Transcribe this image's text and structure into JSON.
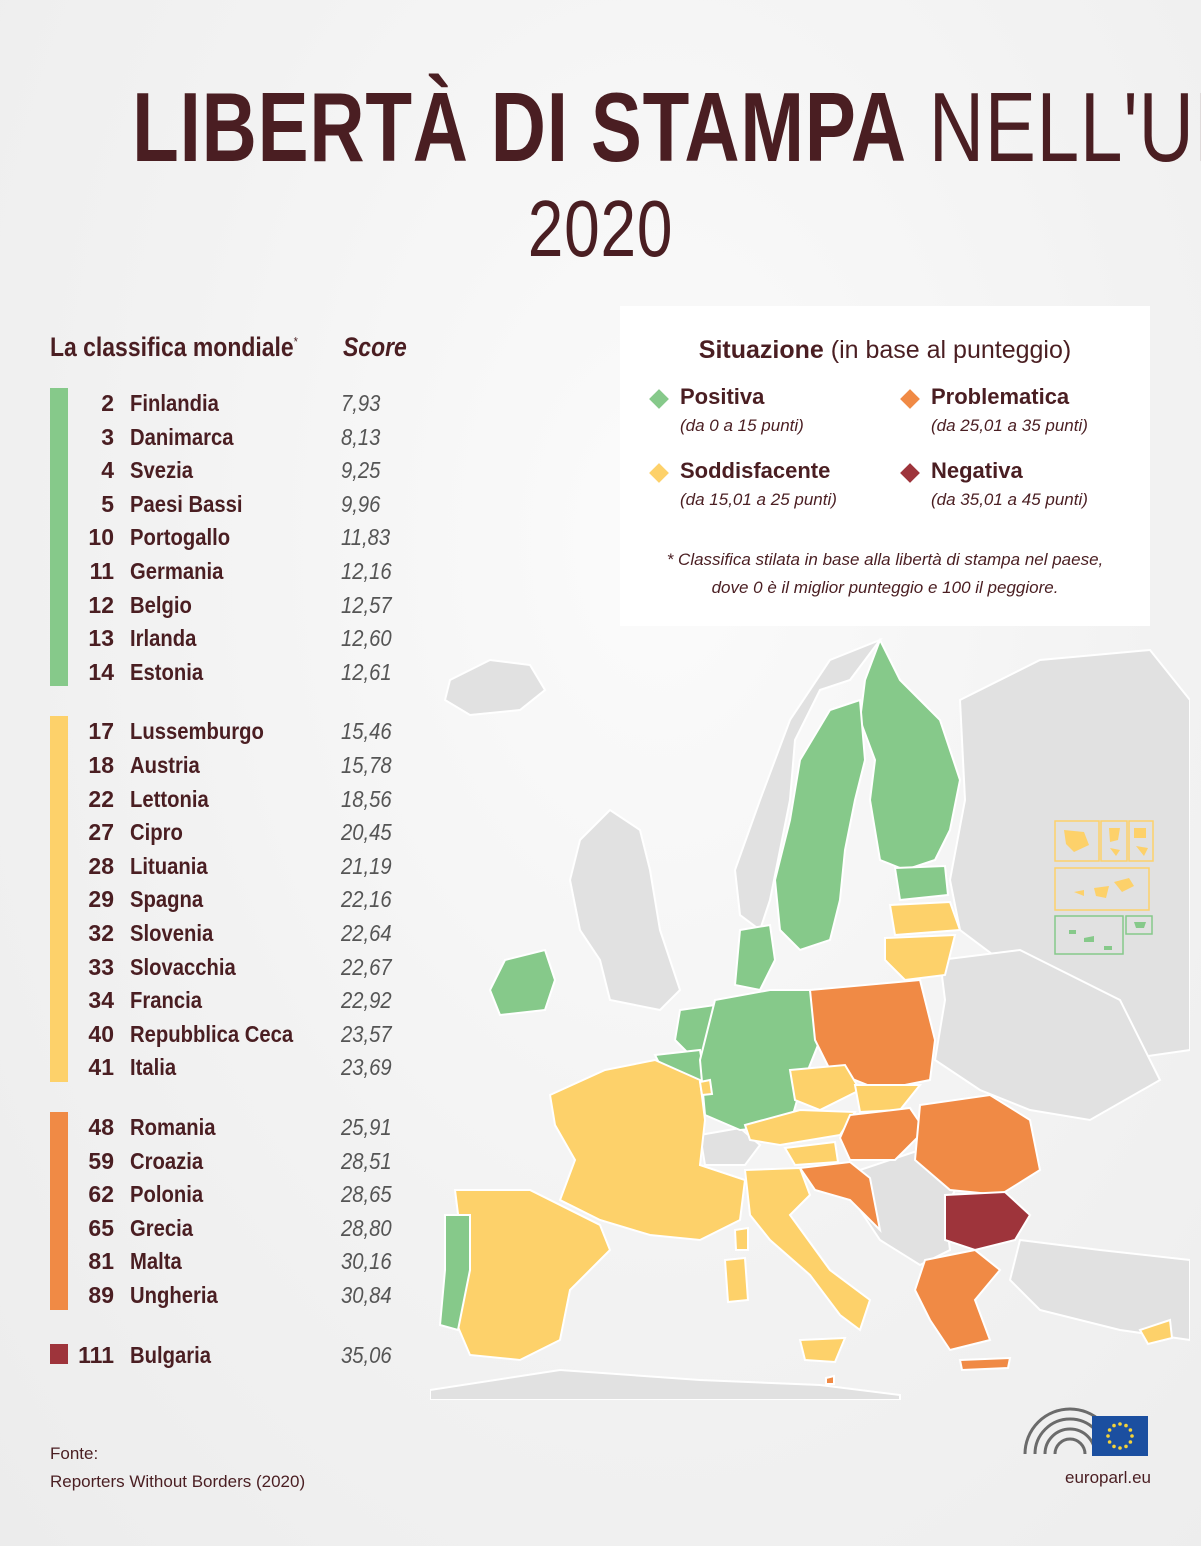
{
  "title": {
    "bold": "LIBERTÀ DI STAMPA",
    "light": "NELL'UE",
    "year": "2020"
  },
  "ranking": {
    "header": "La classifica mondiale",
    "header_mark": "*",
    "score_header": "Score",
    "groups": [
      {
        "category": "positive",
        "rows": [
          {
            "rank": "2",
            "country": "Finlandia",
            "score": "7,93"
          },
          {
            "rank": "3",
            "country": "Danimarca",
            "score": "8,13"
          },
          {
            "rank": "4",
            "country": "Svezia",
            "score": "9,25"
          },
          {
            "rank": "5",
            "country": "Paesi Bassi",
            "score": "9,96"
          },
          {
            "rank": "10",
            "country": "Portogallo",
            "score": "11,83"
          },
          {
            "rank": "11",
            "country": "Germania",
            "score": "12,16"
          },
          {
            "rank": "12",
            "country": "Belgio",
            "score": "12,57"
          },
          {
            "rank": "13",
            "country": "Irlanda",
            "score": "12,60"
          },
          {
            "rank": "14",
            "country": "Estonia",
            "score": "12,61"
          }
        ]
      },
      {
        "category": "satisfactory",
        "rows": [
          {
            "rank": "17",
            "country": "Lussemburgo",
            "score": "15,46"
          },
          {
            "rank": "18",
            "country": "Austria",
            "score": "15,78"
          },
          {
            "rank": "22",
            "country": "Lettonia",
            "score": "18,56"
          },
          {
            "rank": "27",
            "country": "Cipro",
            "score": "20,45"
          },
          {
            "rank": "28",
            "country": "Lituania",
            "score": "21,19"
          },
          {
            "rank": "29",
            "country": "Spagna",
            "score": "22,16"
          },
          {
            "rank": "32",
            "country": "Slovenia",
            "score": "22,64"
          },
          {
            "rank": "33",
            "country": "Slovacchia",
            "score": "22,67"
          },
          {
            "rank": "34",
            "country": "Francia",
            "score": "22,92"
          },
          {
            "rank": "40",
            "country": "Repubblica Ceca",
            "score": "23,57"
          },
          {
            "rank": "41",
            "country": "Italia",
            "score": "23,69"
          }
        ]
      },
      {
        "category": "problematic",
        "rows": [
          {
            "rank": "48",
            "country": "Romania",
            "score": "25,91"
          },
          {
            "rank": "59",
            "country": "Croazia",
            "score": "28,51"
          },
          {
            "rank": "62",
            "country": "Polonia",
            "score": "28,65"
          },
          {
            "rank": "65",
            "country": "Grecia",
            "score": "28,80"
          },
          {
            "rank": "81",
            "country": "Malta",
            "score": "30,16"
          },
          {
            "rank": "89",
            "country": "Ungheria",
            "score": "30,84"
          }
        ]
      },
      {
        "category": "negative",
        "rows": [
          {
            "rank": "111",
            "country": "Bulgaria",
            "score": "35,06"
          }
        ]
      }
    ]
  },
  "legend": {
    "title_bold": "Situazione",
    "title_light": "(in base al punteggio)",
    "items": [
      {
        "label": "Positiva",
        "range": "(da 0 a 15 punti)",
        "color": "#86c98a"
      },
      {
        "label": "Problematica",
        "range": "(da 25,01 a 35 punti)",
        "color": "#f08a45"
      },
      {
        "label": "Soddisfacente",
        "range": "(da 15,01 a 25 punti)",
        "color": "#fdd16a"
      },
      {
        "label": "Negativa",
        "range": "(da 35,01 a 45 punti)",
        "color": "#9e343b"
      }
    ],
    "note_line1": "* Classifica stilata in base alla libertà di stampa nel paese,",
    "note_line2": "dove 0 è il miglior punteggio e 100 il peggiore."
  },
  "colors": {
    "positive": "#86c98a",
    "satisfactory": "#fdd16a",
    "problematic": "#f08a45",
    "negative": "#9e343b",
    "non_eu": "#dcdcdc",
    "text": "#4a1e22"
  },
  "map": {
    "country_colors": {
      "Finlandia": "positive",
      "Svezia": "positive",
      "Estonia": "positive",
      "Danimarca": "positive",
      "Irlanda": "positive",
      "Paesi Bassi": "positive",
      "Belgio": "positive",
      "Germania": "positive",
      "Portogallo": "positive",
      "Lettonia": "satisfactory",
      "Lituania": "satisfactory",
      "Francia": "satisfactory",
      "Spagna": "satisfactory",
      "Italia": "satisfactory",
      "Austria": "satisfactory",
      "Repubblica Ceca": "satisfactory",
      "Slovacchia": "satisfactory",
      "Slovenia": "satisfactory",
      "Lussemburgo": "satisfactory",
      "Cipro": "satisfactory",
      "Polonia": "problematic",
      "Ungheria": "problematic",
      "Romania": "problematic",
      "Croazia": "problematic",
      "Grecia": "problematic",
      "Malta": "problematic",
      "Bulgaria": "negative"
    }
  },
  "footer": {
    "source_label": "Fonte:",
    "source": "Reporters Without Borders (2020)",
    "site": "europarl.eu"
  }
}
